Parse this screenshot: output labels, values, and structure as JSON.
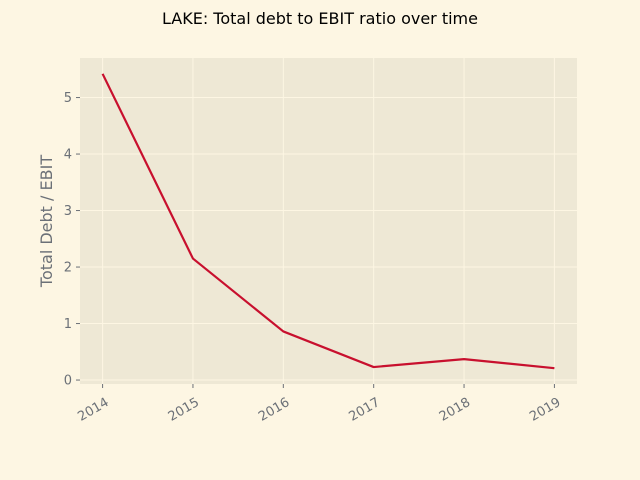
{
  "chart_data": {
    "type": "line",
    "title": "LAKE: Total debt to EBIT ratio over time",
    "xlabel": "",
    "ylabel": "Total Debt / EBIT",
    "categories": [
      "2014",
      "2015",
      "2016",
      "2017",
      "2018",
      "2019"
    ],
    "series": [
      {
        "values": [
          5.42,
          2.15,
          0.86,
          0.23,
          0.37,
          0.21
        ]
      }
    ],
    "xlim": [
      2013.75,
      2019.25
    ],
    "ylim": [
      -0.07,
      5.7
    ],
    "yticks": [
      "0",
      "1",
      "2",
      "3",
      "4",
      "5"
    ],
    "grid": true,
    "colors": {
      "background": "#fdf6e3",
      "plot_background": "#eee8d5",
      "grid": "#fdf6e3",
      "line": "#c8102e",
      "tick_text": "#6b7077"
    }
  }
}
